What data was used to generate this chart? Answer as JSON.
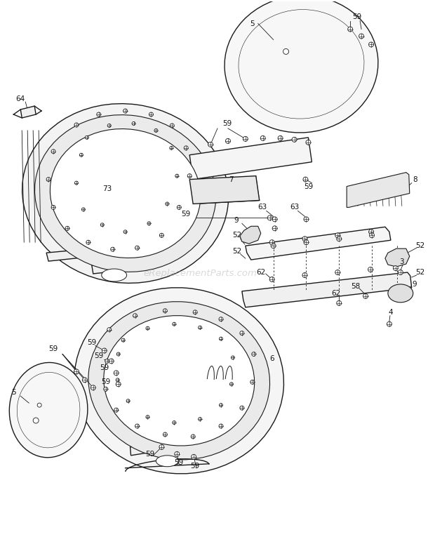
{
  "bg_color": "#ffffff",
  "line_color": "#1a1a1a",
  "label_color": "#111111",
  "watermark": "eReplacementParts.com",
  "watermark_color": "#bbbbbb",
  "watermark_alpha": 0.55,
  "fig_width": 6.2,
  "fig_height": 7.75,
  "dpi": 100
}
